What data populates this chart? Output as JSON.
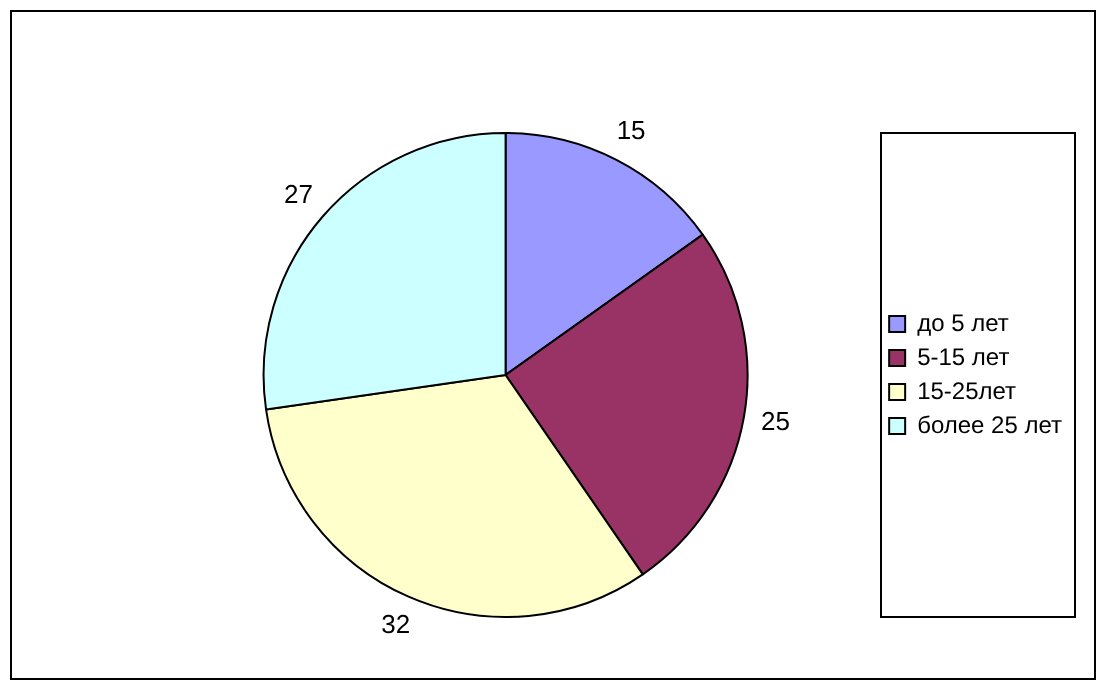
{
  "chart_data": {
    "type": "pie",
    "categories": [
      "до 5 лет",
      "5-15 лет",
      "15-25лет",
      "более 25 лет"
    ],
    "values": [
      15,
      25,
      32,
      27
    ],
    "colors": [
      "#9999ff",
      "#993366",
      "#ffffcc",
      "#ccffff"
    ],
    "data_labels": true,
    "legend": "right"
  }
}
